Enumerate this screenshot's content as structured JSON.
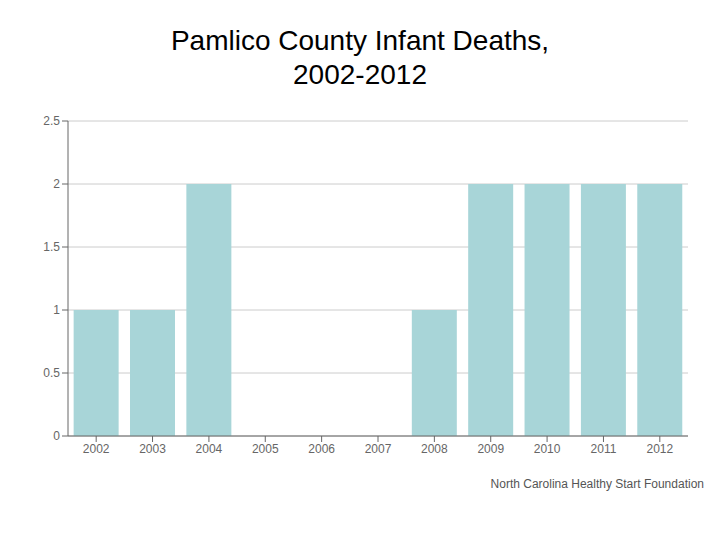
{
  "chart_data": {
    "type": "bar",
    "title": "Pamlico County Infant Deaths,\n2002-2012",
    "categories": [
      "2002",
      "2003",
      "2004",
      "2005",
      "2006",
      "2007",
      "2008",
      "2009",
      "2010",
      "2011",
      "2012"
    ],
    "values": [
      1,
      1,
      2,
      0,
      0,
      0,
      1,
      2,
      2,
      2,
      2
    ],
    "color": "#a8d5d8",
    "ylim": [
      0,
      2.5
    ],
    "yticks": [
      0,
      0.5,
      1,
      1.5,
      2,
      2.5
    ],
    "grid": true,
    "annotations": [
      "North Carolina Healthy Start Foundation"
    ]
  }
}
